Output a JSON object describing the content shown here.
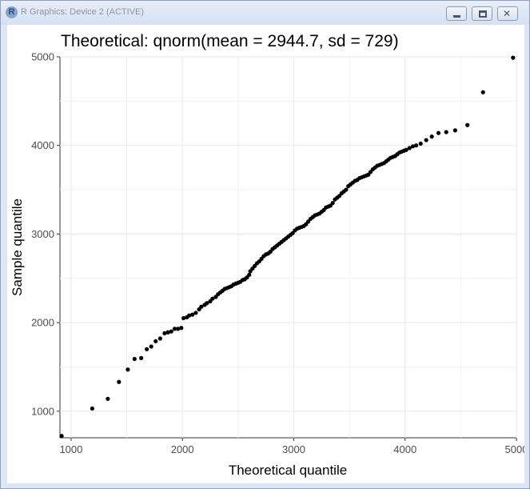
{
  "window": {
    "app_icon": "R",
    "title": "R Graphics: Device 2 (ACTIVE)",
    "buttons": {
      "minimize": "minimize-icon",
      "maximize": "maximize-icon",
      "close": "close-icon"
    }
  },
  "chart_data": {
    "type": "scatter",
    "title": "Theoretical: qnorm(mean = 2944.7, sd = 729)",
    "xlabel": "Theoretical quantile",
    "ylabel": "Sample quantile",
    "xlim": [
      900,
      5000
    ],
    "ylim": [
      700,
      5000
    ],
    "xticks": [
      1000,
      2000,
      3000,
      4000,
      5000
    ],
    "yticks": [
      1000,
      2000,
      3000,
      4000,
      5000
    ],
    "grid": true,
    "point_color": "#000000",
    "points": [
      [
        915,
        720
      ],
      [
        1190,
        1030
      ],
      [
        1330,
        1140
      ],
      [
        1430,
        1330
      ],
      [
        1510,
        1470
      ],
      [
        1570,
        1590
      ],
      [
        1630,
        1600
      ],
      [
        1680,
        1700
      ],
      [
        1720,
        1730
      ],
      [
        1760,
        1790
      ],
      [
        1800,
        1820
      ],
      [
        1840,
        1880
      ],
      [
        1870,
        1890
      ],
      [
        1900,
        1900
      ],
      [
        1930,
        1930
      ],
      [
        1960,
        1930
      ],
      [
        1990,
        1940
      ],
      [
        2010,
        2050
      ],
      [
        2040,
        2060
      ],
      [
        2060,
        2080
      ],
      [
        2090,
        2090
      ],
      [
        2120,
        2110
      ],
      [
        2150,
        2150
      ],
      [
        2170,
        2180
      ],
      [
        2200,
        2200
      ],
      [
        2220,
        2220
      ],
      [
        2250,
        2240
      ],
      [
        2270,
        2270
      ],
      [
        2300,
        2290
      ],
      [
        2320,
        2320
      ],
      [
        2340,
        2340
      ],
      [
        2360,
        2360
      ],
      [
        2380,
        2380
      ],
      [
        2400,
        2390
      ],
      [
        2420,
        2400
      ],
      [
        2440,
        2410
      ],
      [
        2460,
        2430
      ],
      [
        2480,
        2440
      ],
      [
        2500,
        2450
      ],
      [
        2520,
        2460
      ],
      [
        2540,
        2480
      ],
      [
        2560,
        2490
      ],
      [
        2580,
        2510
      ],
      [
        2600,
        2540
      ],
      [
        2610,
        2580
      ],
      [
        2630,
        2610
      ],
      [
        2650,
        2640
      ],
      [
        2670,
        2670
      ],
      [
        2690,
        2690
      ],
      [
        2710,
        2720
      ],
      [
        2730,
        2750
      ],
      [
        2750,
        2770
      ],
      [
        2770,
        2780
      ],
      [
        2790,
        2800
      ],
      [
        2810,
        2830
      ],
      [
        2830,
        2850
      ],
      [
        2850,
        2870
      ],
      [
        2870,
        2890
      ],
      [
        2890,
        2910
      ],
      [
        2910,
        2930
      ],
      [
        2930,
        2950
      ],
      [
        2950,
        2970
      ],
      [
        2970,
        2990
      ],
      [
        2990,
        3010
      ],
      [
        3010,
        3040
      ],
      [
        3030,
        3060
      ],
      [
        3050,
        3070
      ],
      [
        3070,
        3080
      ],
      [
        3090,
        3090
      ],
      [
        3110,
        3110
      ],
      [
        3130,
        3140
      ],
      [
        3150,
        3170
      ],
      [
        3170,
        3190
      ],
      [
        3190,
        3210
      ],
      [
        3210,
        3220
      ],
      [
        3230,
        3230
      ],
      [
        3250,
        3250
      ],
      [
        3270,
        3270
      ],
      [
        3290,
        3300
      ],
      [
        3310,
        3310
      ],
      [
        3330,
        3320
      ],
      [
        3350,
        3350
      ],
      [
        3370,
        3390
      ],
      [
        3390,
        3410
      ],
      [
        3410,
        3430
      ],
      [
        3430,
        3460
      ],
      [
        3450,
        3480
      ],
      [
        3470,
        3500
      ],
      [
        3490,
        3540
      ],
      [
        3510,
        3560
      ],
      [
        3530,
        3580
      ],
      [
        3550,
        3600
      ],
      [
        3570,
        3610
      ],
      [
        3590,
        3630
      ],
      [
        3610,
        3640
      ],
      [
        3630,
        3650
      ],
      [
        3650,
        3660
      ],
      [
        3670,
        3670
      ],
      [
        3690,
        3700
      ],
      [
        3710,
        3730
      ],
      [
        3730,
        3750
      ],
      [
        3750,
        3770
      ],
      [
        3770,
        3780
      ],
      [
        3790,
        3790
      ],
      [
        3810,
        3800
      ],
      [
        3830,
        3820
      ],
      [
        3850,
        3840
      ],
      [
        3870,
        3860
      ],
      [
        3890,
        3870
      ],
      [
        3910,
        3880
      ],
      [
        3930,
        3900
      ],
      [
        3950,
        3920
      ],
      [
        3970,
        3930
      ],
      [
        3990,
        3940
      ],
      [
        4010,
        3950
      ],
      [
        4040,
        3970
      ],
      [
        4070,
        3990
      ],
      [
        4100,
        4000
      ],
      [
        4140,
        4020
      ],
      [
        4190,
        4060
      ],
      [
        4240,
        4100
      ],
      [
        4300,
        4140
      ],
      [
        4370,
        4150
      ],
      [
        4450,
        4170
      ],
      [
        4560,
        4230
      ],
      [
        4700,
        4600
      ],
      [
        4970,
        4990
      ]
    ]
  }
}
